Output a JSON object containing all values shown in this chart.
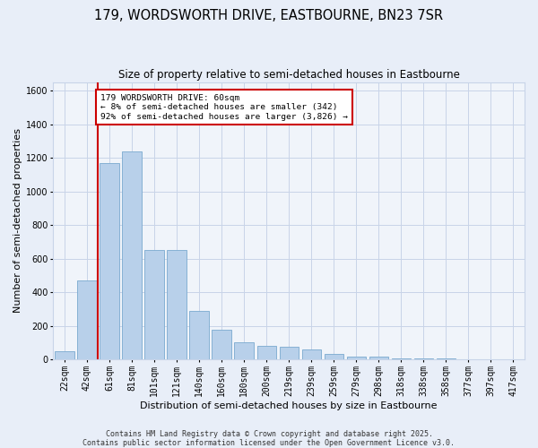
{
  "title": "179, WORDSWORTH DRIVE, EASTBOURNE, BN23 7SR",
  "subtitle": "Size of property relative to semi-detached houses in Eastbourne",
  "xlabel": "Distribution of semi-detached houses by size in Eastbourne",
  "ylabel": "Number of semi-detached properties",
  "categories": [
    "22sqm",
    "42sqm",
    "61sqm",
    "81sqm",
    "101sqm",
    "121sqm",
    "140sqm",
    "160sqm",
    "180sqm",
    "200sqm",
    "219sqm",
    "239sqm",
    "259sqm",
    "279sqm",
    "298sqm",
    "318sqm",
    "338sqm",
    "358sqm",
    "377sqm",
    "397sqm",
    "417sqm"
  ],
  "values": [
    50,
    470,
    1170,
    1240,
    650,
    650,
    290,
    175,
    100,
    80,
    75,
    60,
    35,
    15,
    15,
    8,
    5,
    4,
    3,
    2,
    2
  ],
  "bar_color": "#b8d0ea",
  "bar_edge_color": "#7aaacf",
  "property_line_color": "#cc0000",
  "annotation_text": "179 WORDSWORTH DRIVE: 60sqm\n← 8% of semi-detached houses are smaller (342)\n92% of semi-detached houses are larger (3,826) →",
  "annotation_box_color": "#cc0000",
  "ylim": [
    0,
    1650
  ],
  "yticks": [
    0,
    200,
    400,
    600,
    800,
    1000,
    1200,
    1400,
    1600
  ],
  "footnote": "Contains HM Land Registry data © Crown copyright and database right 2025.\nContains public sector information licensed under the Open Government Licence v3.0.",
  "bg_color": "#e8eef8",
  "plot_bg_color": "#f0f4fa",
  "grid_color": "#c8d4e8",
  "title_fontsize": 10.5,
  "subtitle_fontsize": 8.5,
  "label_fontsize": 8,
  "tick_fontsize": 7,
  "annotation_fontsize": 6.8,
  "footnote_fontsize": 6
}
